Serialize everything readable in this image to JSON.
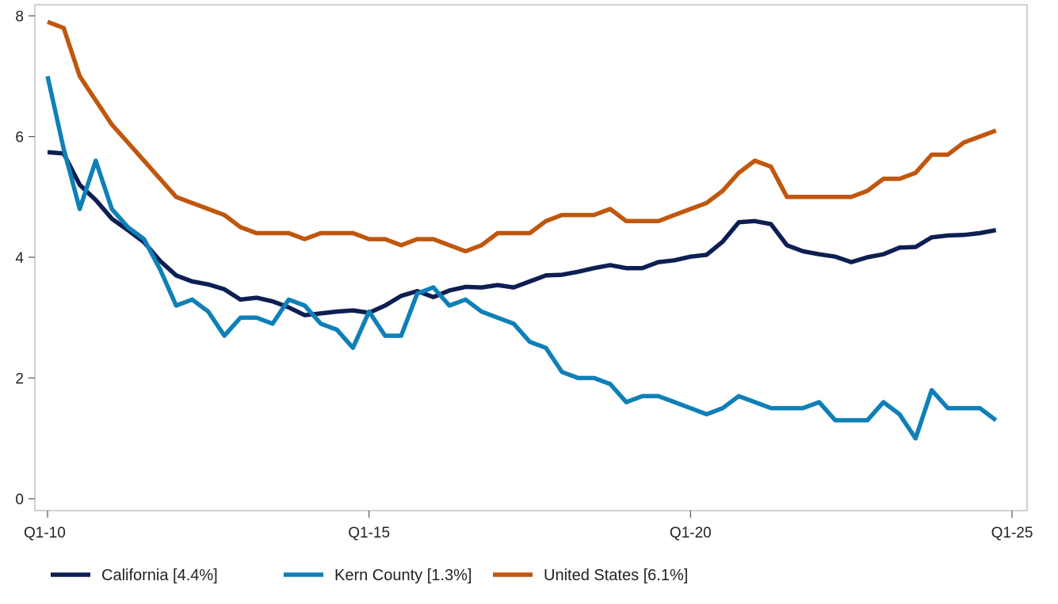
{
  "chart_data": {
    "type": "line",
    "x_ticks": [
      "Q1-10",
      "Q1-15",
      "Q1-20",
      "Q1-25"
    ],
    "y_ticks": [
      0,
      2,
      4,
      6,
      8
    ],
    "ylim": [
      0,
      8.1
    ],
    "grid": false,
    "legend_placement": "bottom",
    "series": [
      {
        "name": "California [4.4%]",
        "color": "#0d1f52",
        "x": [
          2010.0,
          2010.25,
          2010.5,
          2010.75,
          2011.0,
          2011.25,
          2011.5,
          2011.75,
          2012.0,
          2012.25,
          2012.5,
          2012.75,
          2013.0,
          2013.25,
          2013.5,
          2013.75,
          2014.0,
          2014.25,
          2014.5,
          2014.75,
          2015.0,
          2015.25,
          2015.5,
          2015.75,
          2016.0,
          2016.25,
          2016.5,
          2016.75,
          2017.0,
          2017.25,
          2017.5,
          2017.75,
          2018.0,
          2018.25,
          2018.5,
          2018.75,
          2019.0,
          2019.25,
          2019.5,
          2019.75,
          2020.0,
          2020.25,
          2020.5,
          2020.75,
          2021.0,
          2021.25,
          2021.5,
          2021.75,
          2022.0,
          2022.25,
          2022.5,
          2022.75,
          2023.0,
          2023.25,
          2023.5,
          2023.75,
          2024.0,
          2024.25,
          2024.5,
          2024.75
        ],
        "values": [
          5.74,
          5.72,
          5.2,
          4.95,
          4.64,
          4.45,
          4.25,
          3.94,
          3.7,
          3.6,
          3.55,
          3.47,
          3.3,
          3.33,
          3.27,
          3.17,
          3.04,
          3.07,
          3.1,
          3.12,
          3.08,
          3.2,
          3.36,
          3.44,
          3.34,
          3.45,
          3.51,
          3.5,
          3.54,
          3.5,
          3.6,
          3.7,
          3.71,
          3.76,
          3.82,
          3.87,
          3.82,
          3.82,
          3.92,
          3.95,
          4.01,
          4.04,
          4.26,
          4.58,
          4.6,
          4.55,
          4.2,
          4.1,
          4.05,
          4.01,
          3.92,
          4.0,
          4.05,
          4.16,
          4.17,
          4.33,
          4.36,
          4.37,
          4.4,
          4.45
        ]
      },
      {
        "name": "Kern County [1.3%]",
        "color": "#0f80b7",
        "x": [
          2010.0,
          2010.25,
          2010.5,
          2010.75,
          2011.0,
          2011.25,
          2011.5,
          2011.75,
          2012.0,
          2012.25,
          2012.5,
          2012.75,
          2013.0,
          2013.25,
          2013.5,
          2013.75,
          2014.0,
          2014.25,
          2014.5,
          2014.75,
          2015.0,
          2015.25,
          2015.5,
          2015.75,
          2016.0,
          2016.25,
          2016.5,
          2016.75,
          2017.0,
          2017.25,
          2017.5,
          2017.75,
          2018.0,
          2018.25,
          2018.5,
          2018.75,
          2019.0,
          2019.25,
          2019.5,
          2019.75,
          2020.0,
          2020.25,
          2020.5,
          2020.75,
          2021.0,
          2021.25,
          2021.5,
          2021.75,
          2022.0,
          2022.25,
          2022.5,
          2022.75,
          2023.0,
          2023.25,
          2023.5,
          2023.75,
          2024.0,
          2024.25,
          2024.5,
          2024.75
        ],
        "values": [
          7.0,
          5.8,
          4.8,
          5.6,
          4.8,
          4.5,
          4.3,
          3.8,
          3.2,
          3.3,
          3.1,
          2.7,
          3.0,
          3.0,
          2.9,
          3.3,
          3.2,
          2.9,
          2.8,
          2.5,
          3.1,
          2.7,
          2.7,
          3.4,
          3.5,
          3.2,
          3.3,
          3.1,
          3.0,
          2.9,
          2.6,
          2.5,
          2.1,
          2.0,
          2.0,
          1.9,
          1.6,
          1.7,
          1.7,
          1.6,
          1.5,
          1.4,
          1.5,
          1.7,
          1.6,
          1.5,
          1.5,
          1.5,
          1.6,
          1.3,
          1.3,
          1.3,
          1.6,
          1.4,
          1.0,
          1.8,
          1.5,
          1.5,
          1.5,
          1.3
        ]
      },
      {
        "name": "United States [6.1%]",
        "color": "#c0570e",
        "x": [
          2010.0,
          2010.25,
          2010.5,
          2010.75,
          2011.0,
          2011.25,
          2011.5,
          2011.75,
          2012.0,
          2012.25,
          2012.5,
          2012.75,
          2013.0,
          2013.25,
          2013.5,
          2013.75,
          2014.0,
          2014.25,
          2014.5,
          2014.75,
          2015.0,
          2015.25,
          2015.5,
          2015.75,
          2016.0,
          2016.25,
          2016.5,
          2016.75,
          2017.0,
          2017.25,
          2017.5,
          2017.75,
          2018.0,
          2018.25,
          2018.5,
          2018.75,
          2019.0,
          2019.25,
          2019.5,
          2019.75,
          2020.0,
          2020.25,
          2020.5,
          2020.75,
          2021.0,
          2021.25,
          2021.5,
          2021.75,
          2022.0,
          2022.25,
          2022.5,
          2022.75,
          2023.0,
          2023.25,
          2023.5,
          2023.75,
          2024.0,
          2024.25,
          2024.5,
          2024.75
        ],
        "values": [
          7.9,
          7.8,
          7.0,
          6.6,
          6.2,
          5.9,
          5.6,
          5.3,
          5.0,
          4.9,
          4.8,
          4.7,
          4.5,
          4.4,
          4.4,
          4.4,
          4.3,
          4.4,
          4.4,
          4.4,
          4.3,
          4.3,
          4.2,
          4.3,
          4.3,
          4.2,
          4.1,
          4.2,
          4.4,
          4.4,
          4.4,
          4.6,
          4.7,
          4.7,
          4.7,
          4.8,
          4.6,
          4.6,
          4.6,
          4.7,
          4.8,
          4.9,
          5.1,
          5.4,
          5.6,
          5.5,
          5.0,
          5.0,
          5.0,
          5.0,
          5.0,
          5.1,
          5.3,
          5.3,
          5.4,
          5.7,
          5.7,
          5.9,
          6.0,
          6.1
        ]
      }
    ]
  }
}
